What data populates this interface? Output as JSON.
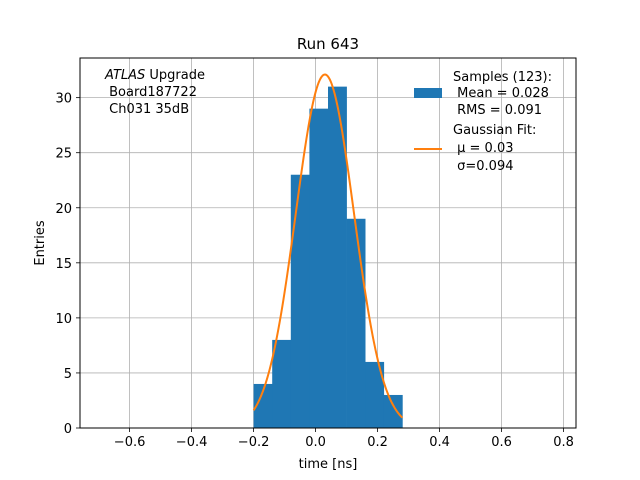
{
  "chart_data": {
    "type": "bar",
    "title": "Run 643",
    "xlabel": "time [ns]",
    "ylabel": "Entries",
    "xlim": [
      -0.76,
      0.84
    ],
    "ylim": [
      0,
      33.6
    ],
    "grid": true,
    "xticks": [
      "−0.6",
      "−0.4",
      "−0.2",
      "0.0",
      "0.2",
      "0.4",
      "0.6",
      "0.8"
    ],
    "xtick_values": [
      -0.6,
      -0.4,
      -0.2,
      0.0,
      0.2,
      0.4,
      0.6,
      0.8
    ],
    "yticks": [
      "0",
      "5",
      "10",
      "15",
      "20",
      "25",
      "30"
    ],
    "ytick_values": [
      0,
      5,
      10,
      15,
      20,
      25,
      30
    ],
    "bin_edges": [
      -0.2,
      -0.14,
      -0.08,
      -0.02,
      0.04,
      0.1,
      0.16,
      0.22,
      0.28
    ],
    "counts": [
      4,
      8,
      23,
      29,
      31,
      19,
      6,
      3
    ],
    "fit": {
      "mu": 0.03,
      "sigma": 0.094,
      "peak": 32.1,
      "x_range": [
        -0.2,
        0.28
      ]
    },
    "colors": {
      "histogram": "#1f77b4",
      "fit": "#ff7f0e"
    },
    "legend": {
      "placement": "top-right",
      "samples": [
        "Samples (123):",
        " Mean = 0.028",
        " RMS = 0.091"
      ],
      "fit": [
        "Gaussian Fit:",
        " μ = 0.03",
        " σ=0.094"
      ]
    },
    "annotation": {
      "lines": [
        {
          "italic": "ATLAS",
          "rest": " Upgrade"
        },
        {
          "italic": "",
          "rest": " Board187722"
        },
        {
          "italic": "",
          "rest": " Ch031 35dB"
        }
      ]
    }
  }
}
